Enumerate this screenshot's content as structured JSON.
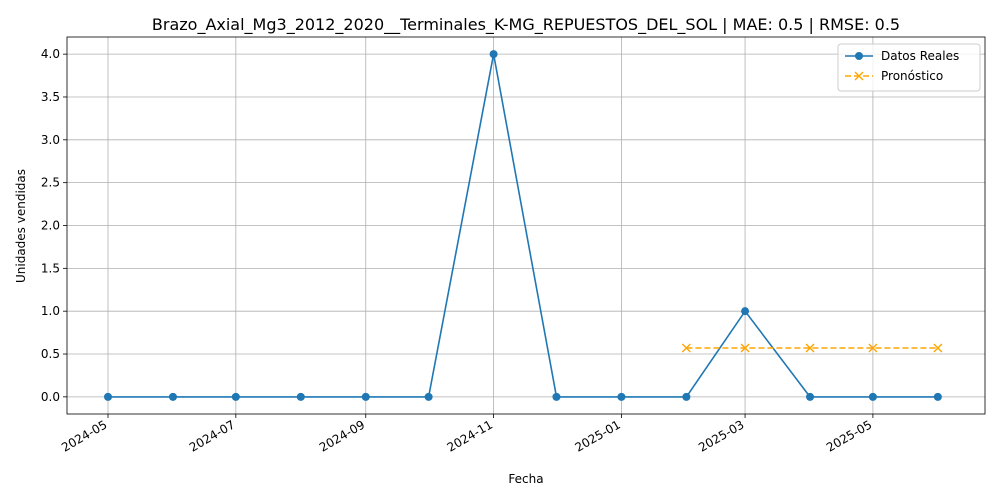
{
  "chart_data": {
    "type": "line",
    "title": "Brazo_Axial_Mg3_2012_2020__Terminales_K-MG_REPUESTOS_DEL_SOL | MAE: 0.5 | RMSE: 0.5",
    "xlabel": "Fecha",
    "ylabel": "Unidades vendidas",
    "ylim": [
      -0.2,
      4.2
    ],
    "y_ticks": [
      "0.0",
      "0.5",
      "1.0",
      "1.5",
      "2.0",
      "2.5",
      "3.0",
      "3.5",
      "4.0"
    ],
    "x_ticks": [
      "2024-05",
      "2024-07",
      "2024-09",
      "2024-11",
      "2025-01",
      "2025-03",
      "2025-05"
    ],
    "grid": true,
    "legend": "top-right",
    "series": [
      {
        "name": "Datos Reales",
        "color": "#1f77b4",
        "style": "solid",
        "marker": "circle",
        "x": [
          "2024-05-01",
          "2024-06-01",
          "2024-07-01",
          "2024-08-01",
          "2024-09-01",
          "2024-10-01",
          "2024-11-01",
          "2024-12-01",
          "2025-01-01",
          "2025-02-01",
          "2025-03-01",
          "2025-04-01",
          "2025-05-01",
          "2025-06-01"
        ],
        "values": [
          0,
          0,
          0,
          0,
          0,
          0,
          4,
          0,
          0,
          0,
          1,
          0,
          0,
          0
        ]
      },
      {
        "name": "Pronóstico",
        "color": "#ffa500",
        "style": "dashed",
        "marker": "x",
        "x": [
          "2025-02-01",
          "2025-03-01",
          "2025-04-01",
          "2025-05-01",
          "2025-06-01"
        ],
        "values": [
          0.57,
          0.57,
          0.57,
          0.57,
          0.57
        ]
      }
    ]
  }
}
